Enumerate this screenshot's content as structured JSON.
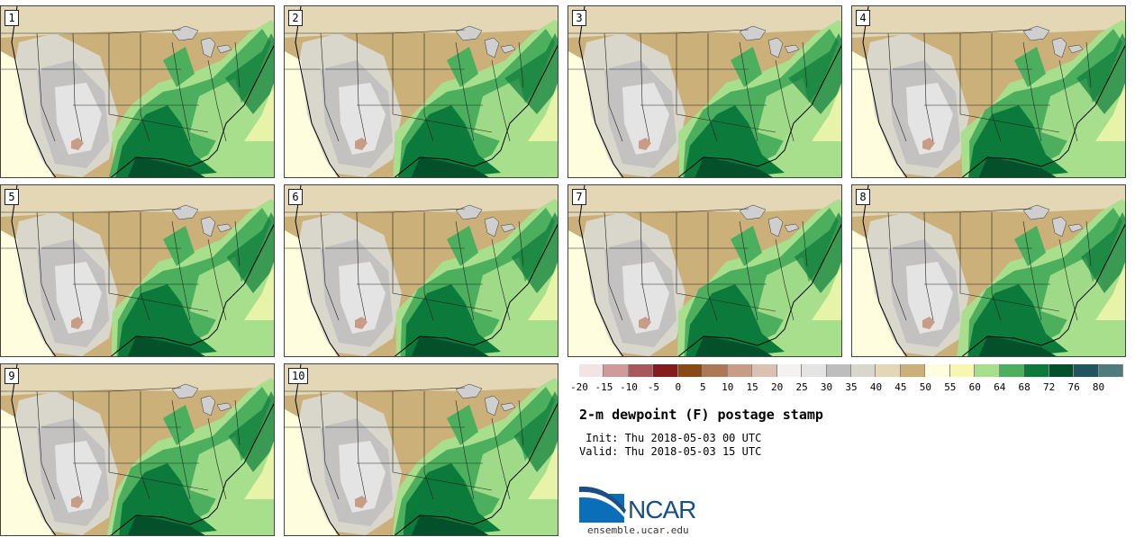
{
  "panels": [
    {
      "label": "1"
    },
    {
      "label": "2"
    },
    {
      "label": "3"
    },
    {
      "label": "4"
    },
    {
      "label": "5"
    },
    {
      "label": "6"
    },
    {
      "label": "7"
    },
    {
      "label": "8"
    },
    {
      "label": "9"
    },
    {
      "label": "10"
    }
  ],
  "legend": {
    "ticks": [
      "-20",
      "-15",
      "-10",
      "-5",
      "0",
      "5",
      "10",
      "15",
      "20",
      "25",
      "30",
      "35",
      "40",
      "45",
      "50",
      "55",
      "60",
      "64",
      "68",
      "72",
      "76",
      "80"
    ],
    "colors": [
      "#f2e4e4",
      "#d09a9a",
      "#a8585a",
      "#851b1e",
      "#8a4a17",
      "#ad7858",
      "#c99c86",
      "#dcc1b2",
      "#f4f2f1",
      "#e4e4e4",
      "#bdbdbd",
      "#d9d6cc",
      "#e3d7b6",
      "#cbb07a",
      "#fefedf",
      "#f7f7b0",
      "#a7df8c",
      "#4caf5d",
      "#0b7a3b",
      "#04502a",
      "#20545e",
      "#4e7c7c"
    ]
  },
  "title": "2-m dewpoint (F) postage stamp",
  "init": " Init: Thu 2018-05-03 00 UTC",
  "valid": "Valid: Thu 2018-05-03 15 UTC",
  "logo": {
    "text": "NCAR",
    "url": "ensemble.ucar.edu"
  }
}
